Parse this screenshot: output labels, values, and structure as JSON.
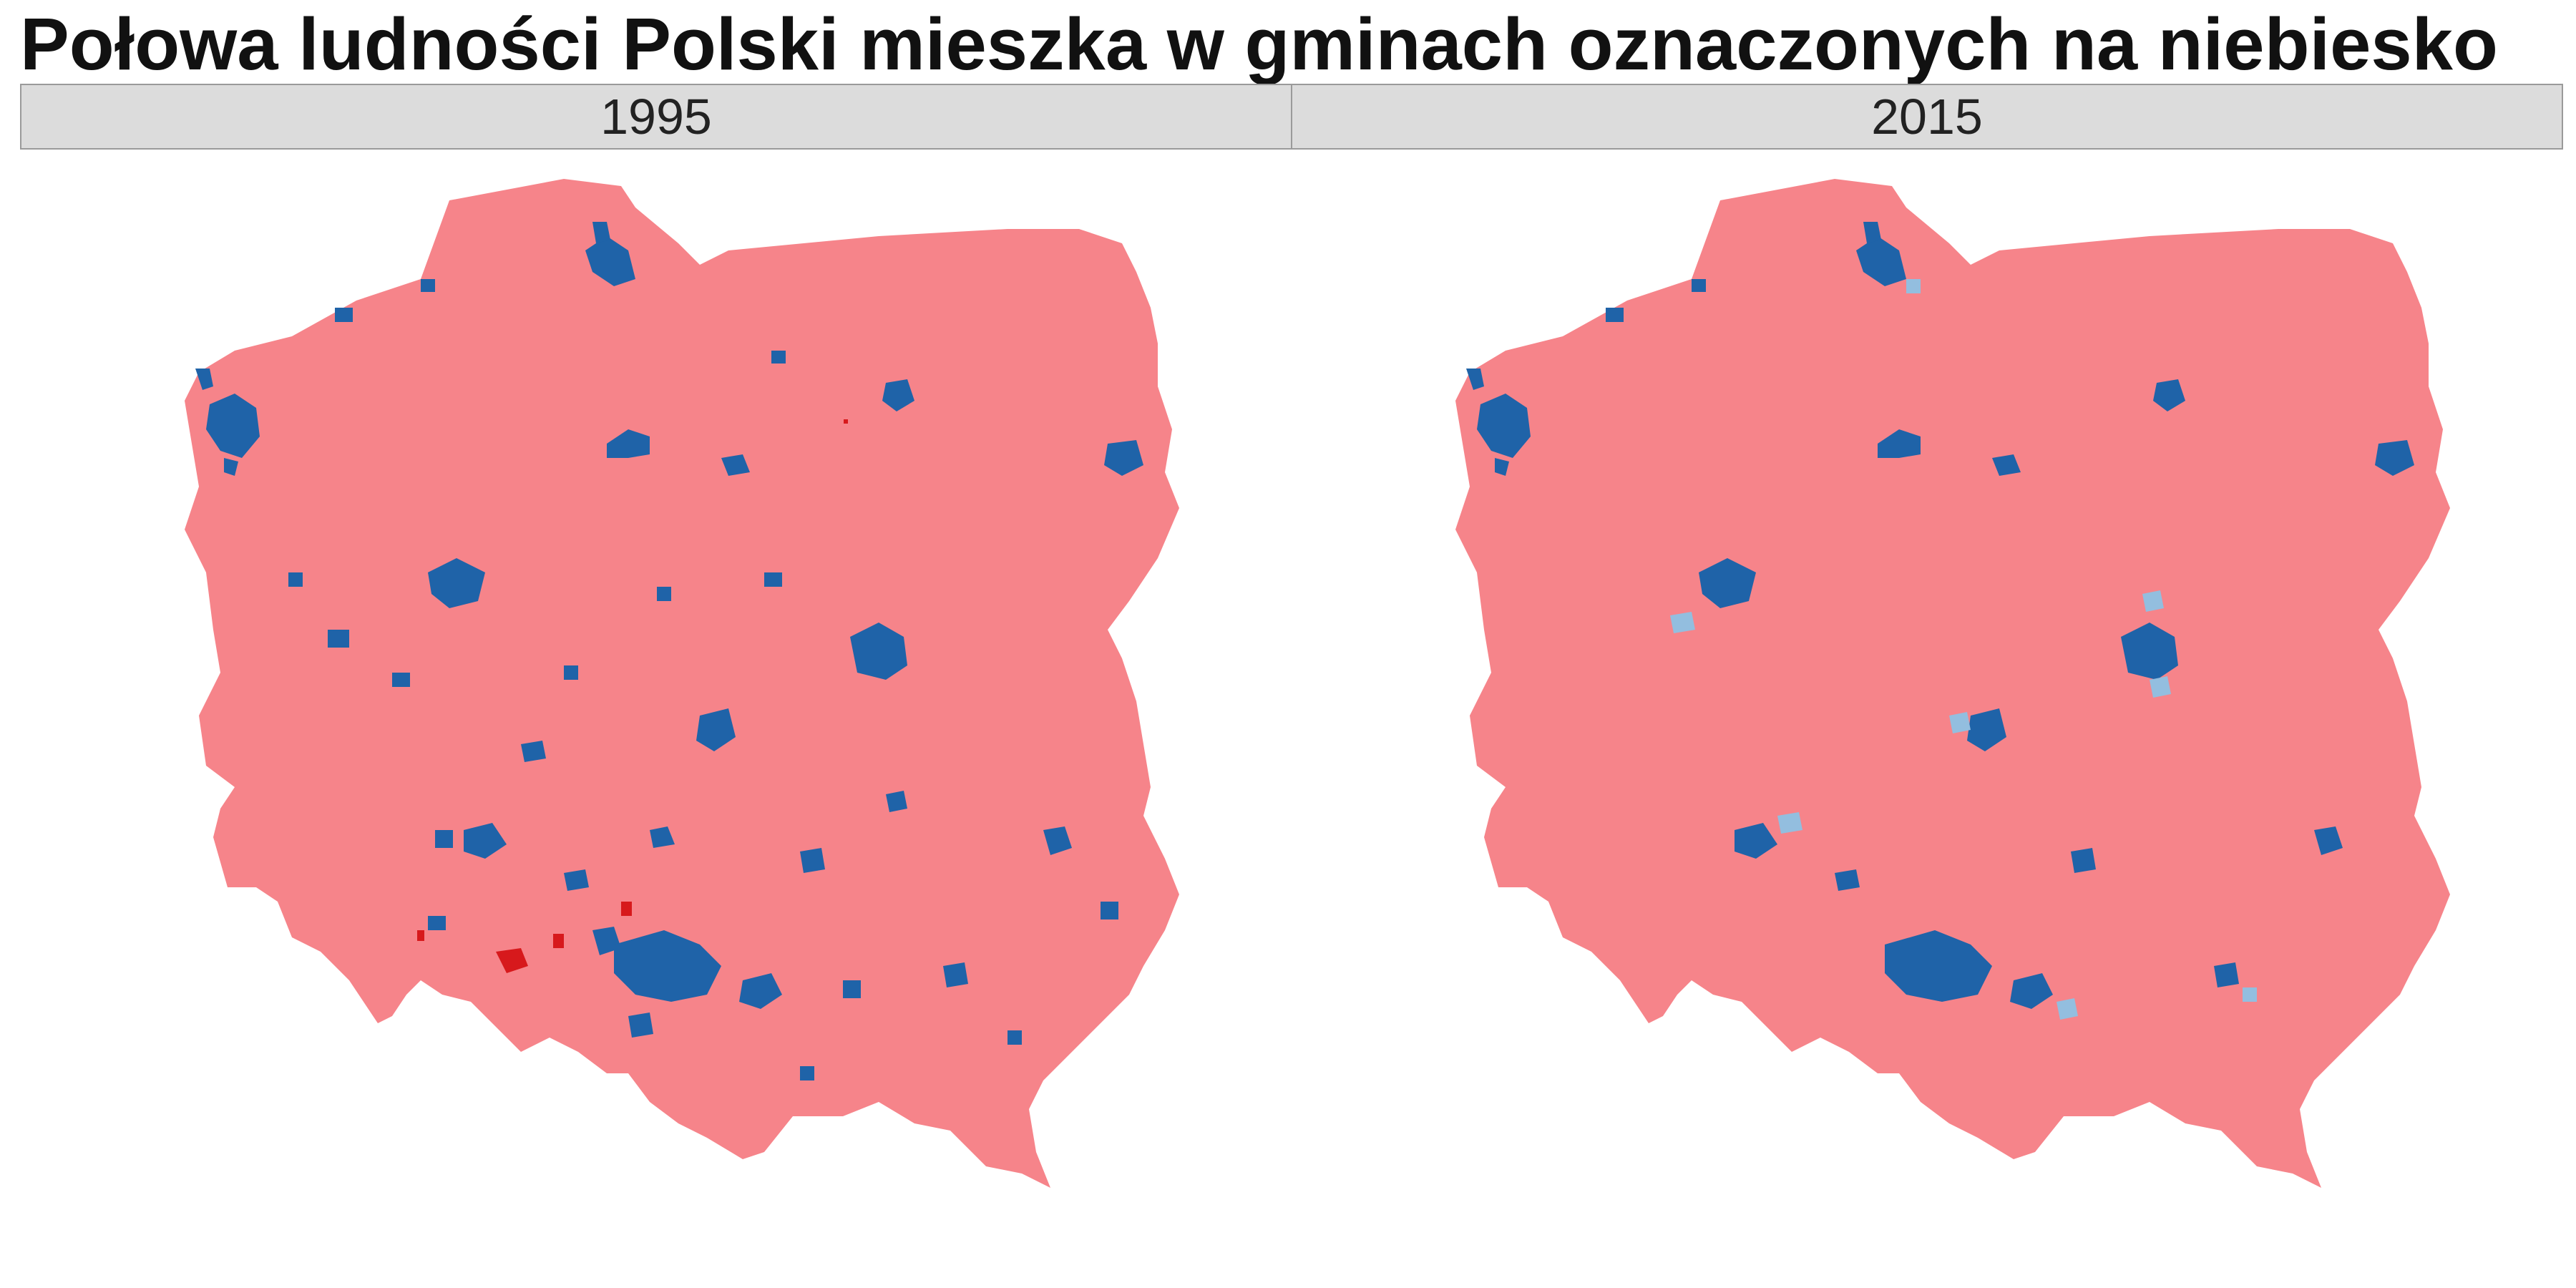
{
  "title": "Połowa ludności Polski mieszka w gminach oznaczonych na niebiesko",
  "panels": [
    {
      "label": "1995"
    },
    {
      "label": "2015"
    }
  ],
  "colors": {
    "background": "#ffffff",
    "strip": "#dcdcdc",
    "rest_of_country": "#f6848a",
    "half_population": "#1f63a8",
    "added_by_2015": "#93bedf",
    "removed_by_2015": "#d7191c"
  }
}
